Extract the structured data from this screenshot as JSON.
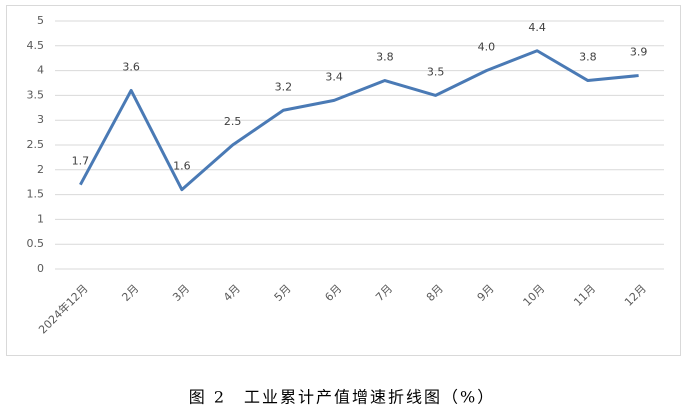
{
  "chart_data": {
    "type": "line",
    "title": "图 2　工业累计产值增速折线图（%）",
    "categories": [
      "2024年12月",
      "2月",
      "3月",
      "4月",
      "5月",
      "6月",
      "7月",
      "8月",
      "9月",
      "10月",
      "11月",
      "12月"
    ],
    "values": [
      1.7,
      3.6,
      1.6,
      2.5,
      3.2,
      3.4,
      3.8,
      3.5,
      4.0,
      4.4,
      3.8,
      3.9
    ],
    "value_labels": [
      "1.7",
      "3.6",
      "1.6",
      "2.5",
      "3.2",
      "3.4",
      "3.8",
      "3.5",
      "4.0",
      "4.4",
      "3.8",
      "3.9"
    ],
    "color": "#4a7ab5",
    "ylim": [
      0,
      5
    ],
    "yticks": [
      0,
      0.5,
      1,
      1.5,
      2,
      2.5,
      3,
      3.5,
      4,
      4.5,
      5
    ],
    "grid": true
  }
}
